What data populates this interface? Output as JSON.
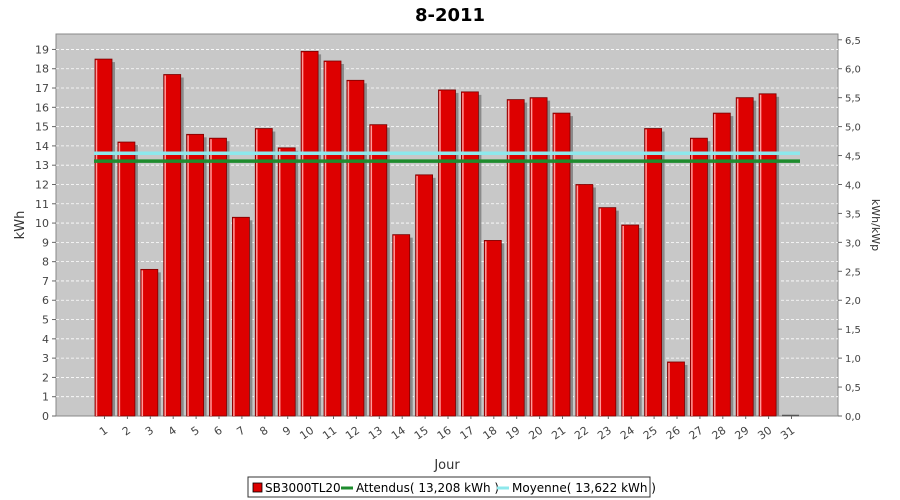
{
  "chart_data": {
    "type": "bar",
    "title": "8-2011",
    "xlabel": "Jour",
    "ylabel": "kWh",
    "y2label": "kWh/kWp",
    "ylim": [
      0,
      19.8
    ],
    "y2lim": [
      0,
      6.6
    ],
    "yticks": [
      0,
      1,
      2,
      3,
      4,
      5,
      6,
      7,
      8,
      9,
      10,
      11,
      12,
      13,
      14,
      15,
      16,
      17,
      18,
      19
    ],
    "y2ticks": [
      "0,0",
      "0,5",
      "1,0",
      "1,5",
      "2,0",
      "2,5",
      "3,0",
      "3,5",
      "4,0",
      "4,5",
      "5,0",
      "5,5",
      "6,0",
      "6,5"
    ],
    "categories": [
      "1",
      "2",
      "3",
      "4",
      "5",
      "6",
      "7",
      "8",
      "9",
      "10",
      "11",
      "12",
      "13",
      "14",
      "15",
      "16",
      "17",
      "18",
      "19",
      "20",
      "21",
      "22",
      "23",
      "24",
      "25",
      "26",
      "27",
      "28",
      "29",
      "30",
      "31"
    ],
    "series": [
      {
        "name": "SB3000TL20",
        "color": "#dd0000",
        "values": [
          18.5,
          14.2,
          7.6,
          17.7,
          14.6,
          14.4,
          10.3,
          14.9,
          13.9,
          18.9,
          18.4,
          17.4,
          15.1,
          9.4,
          12.5,
          16.9,
          16.8,
          9.1,
          16.4,
          16.5,
          15.7,
          12.0,
          10.8,
          9.9,
          14.9,
          2.8,
          14.4,
          15.7,
          16.5,
          16.7,
          0
        ]
      }
    ],
    "reference_lines": [
      {
        "name": "Attendus",
        "legend_label": "Attendus( 13,208 kWh )",
        "value": 13.208,
        "color": "#1e8c2e"
      },
      {
        "name": "Moyenne",
        "legend_label": "Moyenne( 13,622 kWh )",
        "value": 13.622,
        "color": "#8ee8ec"
      }
    ],
    "legend_items": [
      "SB3000TL20",
      "Attendus( 13,208 kWh )",
      "Moyenne( 13,622 kWh )"
    ],
    "legend_position": "bottom",
    "grid": true,
    "colors": {
      "plot_bg": "#c8c8c8",
      "grid": "#ffffff",
      "bar_shadow": "#8a8a8a"
    }
  }
}
